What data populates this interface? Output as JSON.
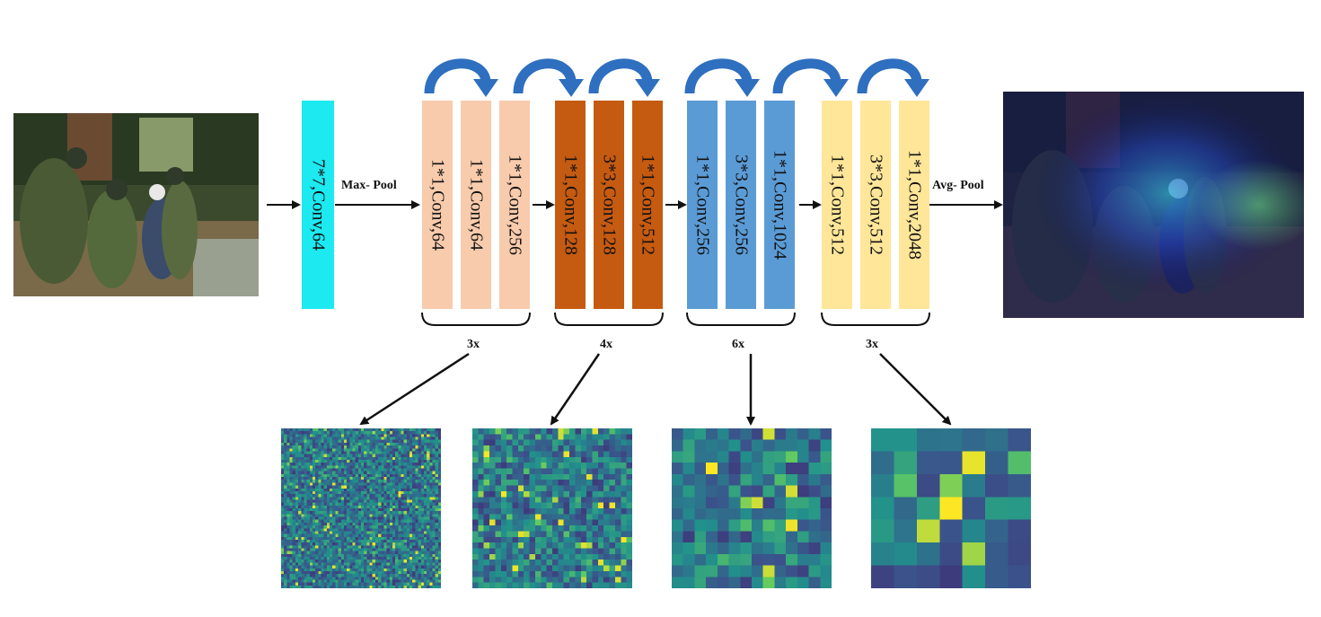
{
  "diagram": {
    "colors": {
      "stem": "#1de9f0",
      "stage1": "#f8cbad",
      "stage2": "#c55a11",
      "stage3": "#5b9bd5",
      "stage4": "#ffe699",
      "skip_arrow": "#2e6fbf"
    },
    "input_image_icon": "photo-rescue-scene",
    "output_image_icon": "photo-rescue-scene-heatmap-overlay",
    "stem_label": "7*7,Conv,64",
    "max_pool_label": "Max- Pool",
    "avg_pool_label": "Avg- Pool",
    "stages": [
      {
        "layers": [
          "1*1,Conv,64",
          "1*1,Conv,64",
          "1*1,Conv,256"
        ],
        "repeat": "3x",
        "heatmap_grid": 56
      },
      {
        "layers": [
          "1*1,Conv,128",
          "3*3,Conv,128",
          "1*1,Conv,512"
        ],
        "repeat": "4x",
        "heatmap_grid": 28
      },
      {
        "layers": [
          "1*1,Conv,256",
          "3*3,Conv,256",
          "1*1,Conv,1024"
        ],
        "repeat": "6x",
        "heatmap_grid": 14
      },
      {
        "layers": [
          "1*1,Conv,512",
          "3*3,Conv,512",
          "1*1,Conv,2048"
        ],
        "repeat": "3x",
        "heatmap_grid": 7
      }
    ]
  }
}
